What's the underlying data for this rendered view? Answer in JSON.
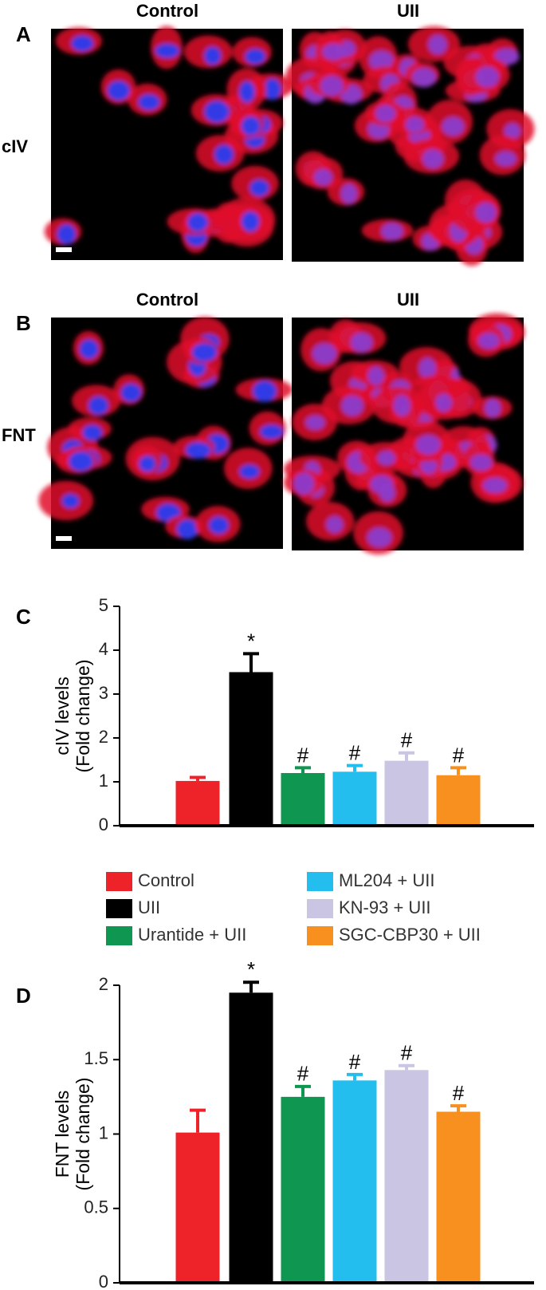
{
  "panels": [
    {
      "label": "A",
      "columns": [
        "Control",
        "UII"
      ],
      "row": "cIV"
    },
    {
      "label": "B",
      "columns": [
        "Control",
        "UII"
      ],
      "row": "FNT"
    }
  ],
  "legend": {
    "names": [
      "Control",
      "UII",
      "Urantide + UII",
      "ML204 + UII",
      "KN-93 + UII",
      "SGC-CBP30 + UII"
    ],
    "colors": [
      "#ee2229",
      "#000000",
      "#0f9650",
      "#23bdee",
      "#c9c5e3",
      "#f7901e"
    ]
  },
  "chart_data": [
    {
      "type": "bar",
      "label": "C",
      "ylabel": [
        "cIV levels",
        "(Fold change)"
      ],
      "values": [
        1.02,
        3.5,
        1.2,
        1.23,
        1.48,
        1.15
      ],
      "errors": [
        0.08,
        0.42,
        0.12,
        0.14,
        0.18,
        0.17
      ],
      "markers": [
        null,
        "*",
        "#",
        "#",
        "#",
        "#"
      ],
      "ylim": [
        0,
        5
      ],
      "yticks": [
        0,
        1,
        2,
        3,
        4,
        5
      ]
    },
    {
      "type": "bar",
      "label": "D",
      "ylabel": [
        "FNT levels",
        "(Fold change)"
      ],
      "values": [
        1.01,
        1.95,
        1.25,
        1.36,
        1.43,
        1.15
      ],
      "errors": [
        0.15,
        0.07,
        0.07,
        0.04,
        0.03,
        0.04
      ],
      "markers": [
        null,
        "*",
        "#",
        "#",
        "#",
        "#"
      ],
      "ylim": [
        0,
        2
      ],
      "yticks": [
        0,
        0.5,
        1,
        1.5,
        2
      ]
    }
  ]
}
